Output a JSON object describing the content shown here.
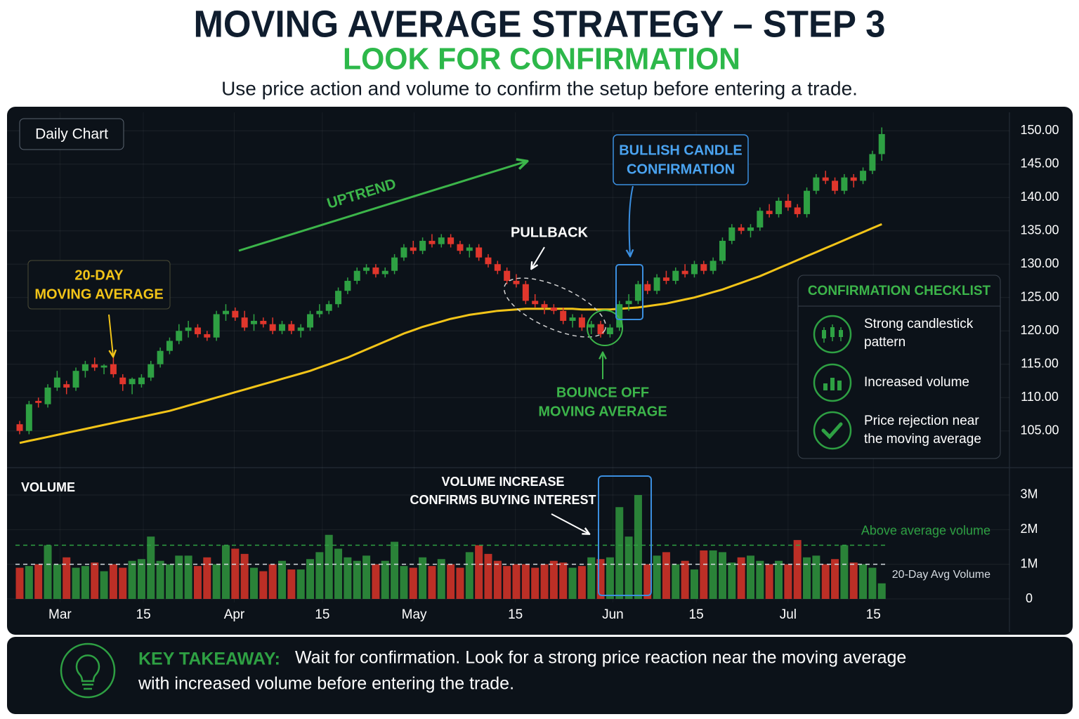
{
  "header": {
    "title": "MOVING AVERAGE STRATEGY – STEP 3",
    "subtitle": "LOOK FOR CONFIRMATION",
    "description": "Use price action and volume to confirm the setup before entering a trade."
  },
  "chart_data": [
    {
      "type": "candlestick",
      "label": "Daily Chart",
      "up_color": "#2ea043",
      "down_color": "#e0362c",
      "xlim": [
        -1.35,
        105.1
      ],
      "ylim": [
        99.6,
        153.6
      ],
      "yticks": [
        {
          "value": 150,
          "label": "150.00"
        },
        {
          "value": 145,
          "label": "145.00"
        },
        {
          "value": 140,
          "label": "140.00"
        },
        {
          "value": 135,
          "label": "135.00"
        },
        {
          "value": 130,
          "label": "130.00"
        },
        {
          "value": 125,
          "label": "125.00"
        },
        {
          "value": 120,
          "label": "120.00"
        },
        {
          "value": 115,
          "label": "115.00"
        },
        {
          "value": 110,
          "label": "110.00"
        },
        {
          "value": 105,
          "label": "105.00"
        }
      ],
      "ohlc": [
        [
          106,
          106.5,
          104.5,
          105
        ],
        [
          105,
          109.5,
          104.5,
          109
        ],
        [
          109.5,
          110,
          108.5,
          109.2
        ],
        [
          109,
          112,
          108.5,
          111.5
        ],
        [
          111.5,
          114,
          111,
          113
        ],
        [
          112,
          112.5,
          110.5,
          111.5
        ],
        [
          111.5,
          114.5,
          111,
          114
        ],
        [
          114,
          115.5,
          113,
          115
        ],
        [
          115,
          116,
          114,
          114.5
        ],
        [
          114.5,
          115,
          113.5,
          114.8
        ],
        [
          115,
          116,
          113,
          113.5
        ],
        [
          113,
          113.5,
          111,
          112
        ],
        [
          112,
          113,
          110.5,
          112.8
        ],
        [
          112,
          113.5,
          111.5,
          113
        ],
        [
          113,
          115.5,
          112.5,
          115
        ],
        [
          115,
          117.5,
          114.5,
          117
        ],
        [
          117,
          119,
          116.5,
          118.5
        ],
        [
          118.5,
          121,
          118,
          120
        ],
        [
          120,
          121.5,
          119,
          120.5
        ],
        [
          120.5,
          121,
          119,
          119.5
        ],
        [
          119.5,
          120,
          118.5,
          119
        ],
        [
          119,
          123,
          118.5,
          122.5
        ],
        [
          122.5,
          124,
          121.5,
          123
        ],
        [
          123,
          123.5,
          121.5,
          122
        ],
        [
          122,
          123,
          120,
          120.5
        ],
        [
          121,
          122.5,
          120,
          121.5
        ],
        [
          121.5,
          122,
          120.5,
          121
        ],
        [
          121,
          122,
          119.5,
          120
        ],
        [
          120,
          121.5,
          119.5,
          121
        ],
        [
          121,
          121.5,
          119.5,
          120
        ],
        [
          120,
          121,
          119,
          120.5
        ],
        [
          120.5,
          123,
          120,
          122.5
        ],
        [
          122.5,
          124,
          122,
          123
        ],
        [
          123,
          124.5,
          122.5,
          124
        ],
        [
          124,
          126.5,
          123.5,
          126
        ],
        [
          126,
          128,
          125.5,
          127.5
        ],
        [
          127.5,
          129.5,
          127,
          129
        ],
        [
          129,
          130,
          128.5,
          129.5
        ],
        [
          129.5,
          130,
          128,
          128.5
        ],
        [
          128.5,
          129.5,
          128,
          129
        ],
        [
          129,
          131.5,
          128.5,
          131
        ],
        [
          131,
          133,
          130.5,
          132.5
        ],
        [
          132.5,
          133.5,
          131.5,
          132
        ],
        [
          132,
          134,
          131.5,
          133.5
        ],
        [
          133.5,
          134.5,
          132.5,
          133
        ],
        [
          133,
          134.5,
          132.5,
          134
        ],
        [
          134,
          134.5,
          132.5,
          133
        ],
        [
          133,
          133.5,
          131.5,
          132
        ],
        [
          132,
          133,
          131,
          132.5
        ],
        [
          132.5,
          133,
          130.5,
          131
        ],
        [
          131,
          131.5,
          129.5,
          130
        ],
        [
          130,
          130.5,
          128.5,
          129
        ],
        [
          129,
          129.5,
          127,
          127.5
        ],
        [
          127.5,
          128.5,
          126.5,
          127
        ],
        [
          127,
          127.5,
          124,
          124.5
        ],
        [
          124.5,
          125.5,
          123.5,
          124
        ],
        [
          124,
          124.5,
          122.5,
          123.5
        ],
        [
          123.5,
          124,
          122.5,
          123
        ],
        [
          123,
          123.5,
          121,
          121.5
        ],
        [
          121.5,
          122.5,
          120.5,
          122
        ],
        [
          122,
          122.5,
          120,
          120.5
        ],
        [
          120.5,
          121.5,
          119.5,
          121
        ],
        [
          121,
          121.5,
          119,
          119.5
        ],
        [
          119.5,
          121,
          119,
          120.5
        ],
        [
          120.5,
          124.5,
          120,
          124
        ],
        [
          124,
          125.5,
          123,
          124.5
        ],
        [
          124.5,
          127.5,
          124,
          127
        ],
        [
          127,
          127.5,
          125.5,
          126
        ],
        [
          126,
          128.5,
          125.5,
          128
        ],
        [
          128,
          129,
          127,
          127.5
        ],
        [
          127.5,
          129.5,
          127,
          129
        ],
        [
          129,
          130,
          128,
          128.5
        ],
        [
          128.5,
          130.5,
          128,
          130
        ],
        [
          130,
          130.5,
          128.5,
          129
        ],
        [
          129,
          131,
          128.5,
          130.5
        ],
        [
          130.5,
          134,
          130,
          133.5
        ],
        [
          133.5,
          136,
          133,
          135.5
        ],
        [
          135.5,
          136,
          134.5,
          135
        ],
        [
          135,
          136,
          134,
          135.5
        ],
        [
          135.5,
          138.5,
          135,
          138
        ],
        [
          138,
          139,
          137,
          137.5
        ],
        [
          137.5,
          140,
          137,
          139.5
        ],
        [
          139.5,
          140.5,
          138,
          138.5
        ],
        [
          138.5,
          139,
          137,
          137.5
        ],
        [
          137.5,
          141.5,
          137,
          141
        ],
        [
          141,
          143.5,
          140.5,
          143
        ],
        [
          143,
          144,
          142,
          142.5
        ],
        [
          142.5,
          143,
          140.5,
          141
        ],
        [
          141,
          143.5,
          140.5,
          143
        ],
        [
          143,
          143.5,
          141.5,
          142.5
        ],
        [
          142.5,
          144.5,
          142,
          144
        ],
        [
          144,
          147,
          143.5,
          146.5
        ],
        [
          146.5,
          150.5,
          145.5,
          149.5
        ]
      ],
      "ma": {
        "label": [
          "20-DAY",
          "MOVING AVERAGE"
        ],
        "color": "#f2c418",
        "values": [
          103.2,
          103.5,
          103.8,
          104.1,
          104.4,
          104.7,
          105.0,
          105.3,
          105.6,
          105.9,
          106.2,
          106.5,
          106.8,
          107.1,
          107.4,
          107.7,
          108.0,
          108.4,
          108.8,
          109.2,
          109.6,
          110.0,
          110.4,
          110.8,
          111.2,
          111.6,
          112.0,
          112.4,
          112.8,
          113.2,
          113.6,
          114.0,
          114.5,
          115.0,
          115.5,
          116.0,
          116.6,
          117.2,
          117.8,
          118.4,
          119.0,
          119.6,
          120.1,
          120.6,
          121.0,
          121.4,
          121.8,
          122.1,
          122.4,
          122.6,
          122.8,
          123.0,
          123.1,
          123.2,
          123.3,
          123.3,
          123.3,
          123.3,
          123.3,
          123.3,
          123.2,
          123.2,
          123.2,
          123.2,
          123.3,
          123.4,
          123.5,
          123.7,
          123.9,
          124.1,
          124.4,
          124.7,
          125.0,
          125.4,
          125.8,
          126.2,
          126.7,
          127.2,
          127.7,
          128.2,
          128.8,
          129.4,
          130.0,
          130.6,
          131.2,
          131.8,
          132.4,
          133.0,
          133.6,
          134.2,
          134.8,
          135.4,
          136.0
        ]
      },
      "annotations": {
        "uptrend": "UPTREND",
        "pullback": "PULLBACK",
        "bounce": [
          "BOUNCE OFF",
          "MOVING AVERAGE"
        ],
        "bullish": [
          "BULLISH CANDLE",
          "CONFIRMATION"
        ]
      }
    },
    {
      "type": "bar",
      "title": "VOLUME",
      "up_color": "#2e8f3c",
      "down_color": "#cf3328",
      "xlim": [
        -1.35,
        105.1
      ],
      "ylim": [
        0,
        3.77
      ],
      "yticks": [
        {
          "value": 3,
          "label": "3M"
        },
        {
          "value": 2,
          "label": "2M"
        },
        {
          "value": 1,
          "label": "1M"
        },
        0
      ],
      "xticks": [
        {
          "value": 4.3,
          "label": "Mar"
        },
        {
          "value": 13.2,
          "label": "15"
        },
        {
          "value": 22.9,
          "label": "Apr"
        },
        {
          "value": 32.3,
          "label": "15"
        },
        {
          "value": 42.1,
          "label": "May"
        },
        {
          "value": 52.9,
          "label": "15"
        },
        {
          "value": 63.3,
          "label": "Jun"
        },
        {
          "value": 72.2,
          "label": "15"
        },
        {
          "value": 82.0,
          "label": "Jul"
        },
        {
          "value": 91.1,
          "label": "15"
        }
      ],
      "values": [
        0.9,
        0.95,
        1.0,
        1.55,
        1.0,
        1.2,
        0.9,
        0.95,
        1.05,
        0.8,
        1.0,
        0.9,
        1.1,
        1.15,
        1.8,
        1.1,
        1.0,
        1.25,
        1.25,
        0.95,
        1.2,
        1.0,
        1.55,
        1.45,
        1.3,
        0.9,
        0.8,
        1.0,
        1.1,
        0.85,
        0.85,
        1.15,
        1.35,
        1.85,
        1.45,
        1.2,
        1.1,
        1.25,
        1.0,
        1.1,
        1.65,
        0.95,
        0.9,
        1.2,
        0.95,
        1.15,
        1.0,
        0.9,
        1.35,
        1.55,
        1.3,
        1.1,
        0.95,
        1.0,
        1.0,
        0.9,
        1.0,
        1.1,
        1.05,
        0.9,
        0.95,
        1.2,
        1.15,
        1.2,
        2.65,
        1.8,
        3.0,
        1.0,
        1.25,
        1.35,
        1.0,
        1.1,
        0.85,
        1.4,
        1.4,
        1.35,
        1.05,
        1.2,
        1.25,
        1.1,
        1.0,
        1.1,
        1.0,
        1.7,
        1.2,
        1.25,
        1.0,
        1.15,
        1.55,
        1.05,
        1.0,
        0.9,
        0.45
      ],
      "reference_lines": [
        {
          "value": 1.55,
          "label": "Above average volume",
          "color": "#2ea043"
        },
        {
          "value": 1.0,
          "label": "20-Day Avg Volume",
          "color": "#d5dbe1"
        }
      ],
      "annotation": [
        "VOLUME INCREASE",
        "CONFIRMS BUYING INTEREST"
      ]
    }
  ],
  "checklist": {
    "title": "CONFIRMATION CHECKLIST",
    "items": [
      [
        "Strong candlestick",
        "pattern"
      ],
      [
        "Increased volume"
      ],
      [
        "Price rejection near",
        "the moving average"
      ]
    ]
  },
  "takeaway": {
    "label": "KEY TAKEAWAY:",
    "lines": [
      "Wait for confirmation. Look for a strong price reaction near the moving average",
      "with increased volume before entering the trade."
    ]
  }
}
